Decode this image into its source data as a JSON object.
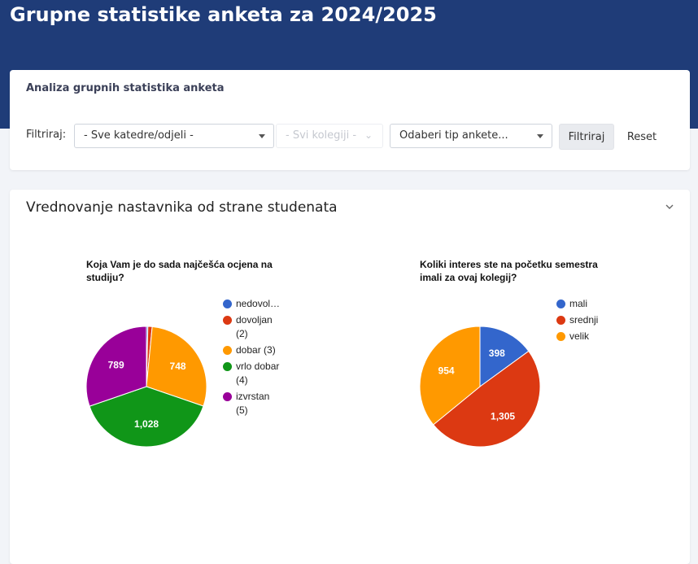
{
  "header": {
    "title": "Grupne statistike anketa za 2024/2025"
  },
  "filter": {
    "subtitle": "Analiza grupnih statistika anketa",
    "label": "Filtriraj:",
    "department_select": "- Sve katedre/odjeli -",
    "course_select": "- Svi kolegiji -",
    "survey_type_select": "Odaberi tip ankete...",
    "filter_button": "Filtriraj",
    "reset_button": "Reset"
  },
  "section": {
    "title": "Vrednovanje nastavnika od strane studenata"
  },
  "chart_data": [
    {
      "type": "pie",
      "title": "Koja Vam je do sada najčešća ocjena na studiju?",
      "legend_position": "right",
      "slices": [
        {
          "label": "nedovoljan (1)",
          "legend_display": "nedovol…",
          "legend_display_2": "",
          "value": 10,
          "color": "#3366cc",
          "data_label": ""
        },
        {
          "label": "dovoljan (2)",
          "legend_display": "dovoljan",
          "legend_display_2": "(2)",
          "value": 30,
          "color": "#dc3912",
          "data_label": ""
        },
        {
          "label": "dobar (3)",
          "legend_display": "dobar (3)",
          "legend_display_2": "",
          "value": 748,
          "color": "#ff9900",
          "data_label": "748"
        },
        {
          "label": "vrlo dobar (4)",
          "legend_display": "vrlo dobar",
          "legend_display_2": "(4)",
          "value": 1028,
          "color": "#109618",
          "data_label": "1,028"
        },
        {
          "label": "izvrstan (5)",
          "legend_display": "izvrstan",
          "legend_display_2": "(5)",
          "value": 789,
          "color": "#990099",
          "data_label": "789"
        }
      ]
    },
    {
      "type": "pie",
      "title": "Koliki interes ste na početku semestra imali za ovaj kolegij?",
      "legend_position": "right",
      "slices": [
        {
          "label": "mali",
          "legend_display": "mali",
          "legend_display_2": "",
          "value": 398,
          "color": "#3366cc",
          "data_label": "398"
        },
        {
          "label": "srednji",
          "legend_display": "srednji",
          "legend_display_2": "",
          "value": 1305,
          "color": "#dc3912",
          "data_label": "1,305"
        },
        {
          "label": "velik",
          "legend_display": "velik",
          "legend_display_2": "",
          "value": 954,
          "color": "#ff9900",
          "data_label": "954"
        }
      ]
    }
  ]
}
